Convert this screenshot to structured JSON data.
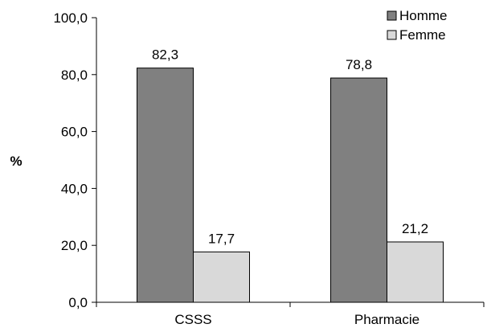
{
  "chart_data": {
    "type": "bar",
    "categories": [
      "CSSS",
      "Pharmacie"
    ],
    "series": [
      {
        "name": "Homme",
        "values": [
          82.3,
          78.8
        ],
        "labels": [
          "82,3",
          "78,8"
        ],
        "color": "#808080"
      },
      {
        "name": "Femme",
        "values": [
          17.7,
          21.2
        ],
        "labels": [
          "17,7",
          "21,2"
        ],
        "color": "#d9d9d9"
      }
    ],
    "ylabel": "%",
    "ylim": [
      0,
      100
    ],
    "yticks": [
      0,
      20,
      40,
      60,
      80,
      100
    ],
    "ytick_labels": [
      "0,0",
      "20,0",
      "40,0",
      "60,0",
      "80,0",
      "100,0"
    ],
    "grid": false,
    "legend_position": "top-right",
    "bar_edge_color": "#000000"
  }
}
